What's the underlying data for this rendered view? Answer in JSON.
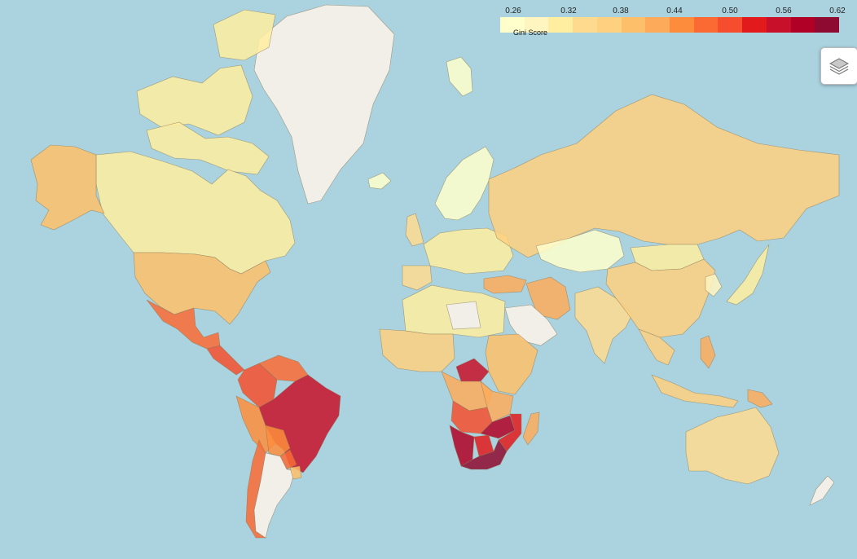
{
  "legend": {
    "caption": "Gini Score",
    "ticks": [
      "0.26",
      "0.32",
      "0.38",
      "0.44",
      "0.50",
      "0.56",
      "0.62"
    ],
    "colors": [
      "#ffffcc",
      "#fff5c0",
      "#ffeda0",
      "#feda8f",
      "#fed07f",
      "#febf6a",
      "#fdab5a",
      "#fd8d3c",
      "#fc6a34",
      "#f64d2e",
      "#e31a1c",
      "#c8102a",
      "#b10026",
      "#8e0a30"
    ]
  },
  "map": {
    "ocean_color": "#aad3df",
    "no_data_color": "#f2efe9",
    "countries": [
      {
        "name": "Greenland",
        "gini": null
      },
      {
        "name": "Canada",
        "gini": 0.33
      },
      {
        "name": "Alaska",
        "gini": 0.41
      },
      {
        "name": "United States",
        "gini": 0.41
      },
      {
        "name": "Mexico",
        "gini": 0.48
      },
      {
        "name": "Central America",
        "gini": 0.5
      },
      {
        "name": "Colombia",
        "gini": 0.51
      },
      {
        "name": "Venezuela",
        "gini": 0.47
      },
      {
        "name": "Peru",
        "gini": 0.44
      },
      {
        "name": "Brazil",
        "gini": 0.55
      },
      {
        "name": "Bolivia",
        "gini": 0.44
      },
      {
        "name": "Paraguay",
        "gini": 0.47
      },
      {
        "name": "Chile",
        "gini": 0.47
      },
      {
        "name": "Argentina",
        "gini": null
      },
      {
        "name": "Uruguay",
        "gini": 0.4
      },
      {
        "name": "Iceland",
        "gini": 0.28
      },
      {
        "name": "Scandinavia",
        "gini": 0.27
      },
      {
        "name": "Western Europe",
        "gini": 0.32
      },
      {
        "name": "Spain",
        "gini": 0.35
      },
      {
        "name": "United Kingdom",
        "gini": 0.34
      },
      {
        "name": "Russia",
        "gini": 0.38
      },
      {
        "name": "Kazakhstan",
        "gini": 0.28
      },
      {
        "name": "Mongolia",
        "gini": 0.33
      },
      {
        "name": "China",
        "gini": 0.38
      },
      {
        "name": "India",
        "gini": 0.35
      },
      {
        "name": "Iran",
        "gini": 0.42
      },
      {
        "name": "Turkey",
        "gini": 0.42
      },
      {
        "name": "Saudi Arabia",
        "gini": null
      },
      {
        "name": "Libya",
        "gini": null
      },
      {
        "name": "North Africa",
        "gini": 0.32
      },
      {
        "name": "West Africa",
        "gini": 0.38
      },
      {
        "name": "Central Africa",
        "gini": 0.43
      },
      {
        "name": "DR Congo",
        "gini": 0.42
      },
      {
        "name": "Central African Republic",
        "gini": 0.56
      },
      {
        "name": "East Africa",
        "gini": 0.4
      },
      {
        "name": "Angola",
        "gini": 0.51
      },
      {
        "name": "Zambia",
        "gini": 0.57
      },
      {
        "name": "Namibia",
        "gini": 0.59
      },
      {
        "name": "South Africa",
        "gini": 0.63
      },
      {
        "name": "Botswana",
        "gini": 0.53
      },
      {
        "name": "Mozambique",
        "gini": 0.54
      },
      {
        "name": "Madagascar",
        "gini": 0.43
      },
      {
        "name": "Southeast Asia",
        "gini": 0.38
      },
      {
        "name": "Indonesia",
        "gini": 0.38
      },
      {
        "name": "Philippines",
        "gini": 0.42
      },
      {
        "name": "Papua New Guinea",
        "gini": 0.42
      },
      {
        "name": "Japan",
        "gini": 0.33
      },
      {
        "name": "Korea",
        "gini": 0.31
      },
      {
        "name": "Australia",
        "gini": 0.34
      },
      {
        "name": "New Zealand",
        "gini": null
      },
      {
        "name": "Svalbard",
        "gini": 0.27
      },
      {
        "name": "Arctic islands",
        "gini": 0.33
      }
    ]
  }
}
